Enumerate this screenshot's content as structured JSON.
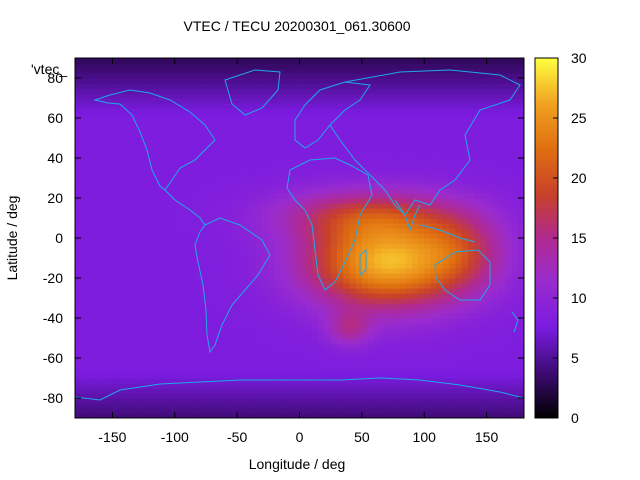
{
  "chart_data": {
    "type": "heatmap",
    "title": "VTEC / TECU 20200301_061.30600",
    "xlabel": "Longitude / deg",
    "ylabel": "Latitude / deg",
    "key_label": "'vtec_",
    "xlim": [
      -180,
      180
    ],
    "ylim": [
      -90,
      90
    ],
    "xticks": [
      -150,
      -100,
      -50,
      0,
      50,
      100,
      150
    ],
    "yticks": [
      -80,
      -60,
      -40,
      -20,
      0,
      20,
      40,
      60,
      80
    ],
    "colorbar": {
      "min": 0,
      "max": 30,
      "ticks": [
        0,
        5,
        10,
        15,
        20,
        25,
        30
      ]
    },
    "colormap": [
      "#000000",
      "#3a0a6e",
      "#7a1be0",
      "#9a2ccf",
      "#b02a8f",
      "#c8402a",
      "#e07010",
      "#f0a020",
      "#ffff40"
    ],
    "coastline_color": "#1fa8e8",
    "grid_cell_deg": {
      "lon": 5,
      "lat": 2.5
    },
    "field_features": [
      {
        "feature": "background",
        "vtec": 8
      },
      {
        "feature": "equatorial-anomaly-core",
        "lon": 70,
        "lat": -12,
        "vtec": 27
      },
      {
        "feature": "equatorial-anomaly-north-crest",
        "lon": 50,
        "lat": 12,
        "vtec": 20
      },
      {
        "feature": "equatorial-anomaly-east",
        "lon": 130,
        "lat": -5,
        "vtec": 18
      },
      {
        "feature": "south-atlantic-patch",
        "lon": 40,
        "lat": -45,
        "vtec": 16
      },
      {
        "feature": "polar-minimum-north",
        "lat": 85,
        "vtec": 3
      },
      {
        "feature": "polar-minimum-south",
        "lat": -88,
        "vtec": 4
      }
    ]
  }
}
